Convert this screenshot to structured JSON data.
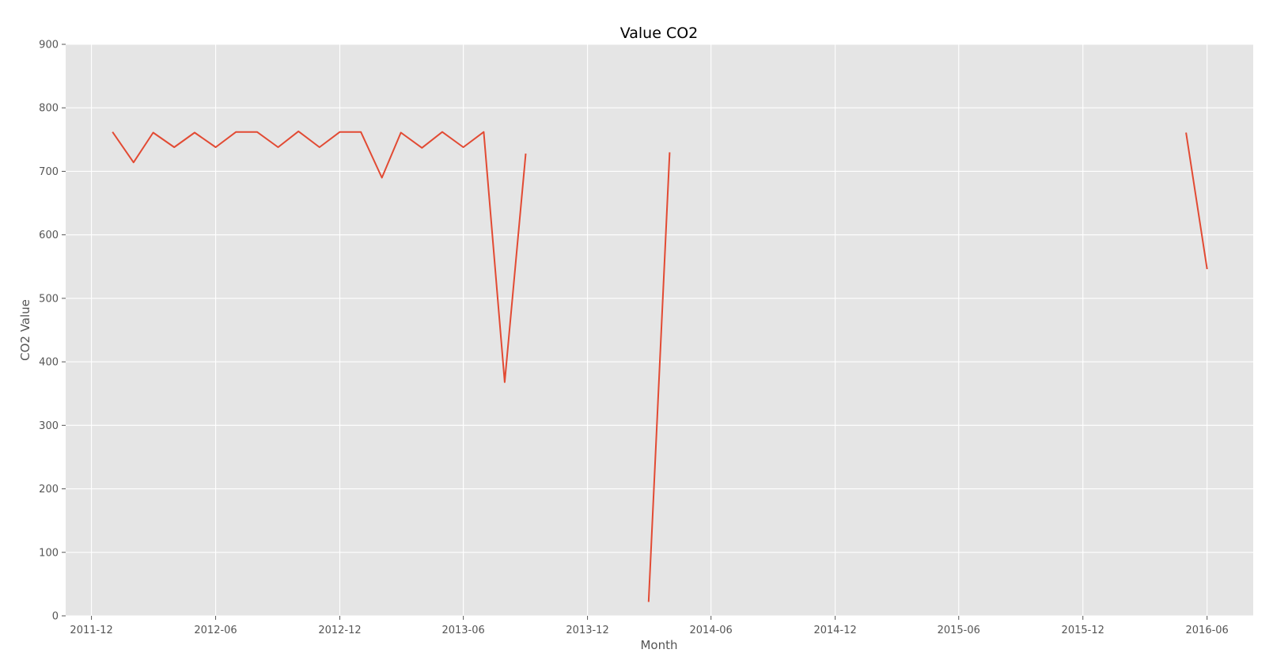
{
  "chart_data": {
    "type": "line",
    "title": "Value CO2",
    "xlabel": "Month",
    "ylabel": "CO2 Value",
    "ylim": [
      0,
      900
    ],
    "xlim": [
      "2011-10-24",
      "2016-08-08"
    ],
    "grid": true,
    "y_ticks": [
      0,
      100,
      200,
      300,
      400,
      500,
      600,
      700,
      800,
      900
    ],
    "x_ticks": [
      "2011-12",
      "2012-06",
      "2012-12",
      "2013-06",
      "2013-12",
      "2014-06",
      "2014-12",
      "2015-06",
      "2015-12",
      "2016-06"
    ],
    "colors": {
      "line": "#e24a33",
      "plot_bg": "#e5e5e5",
      "grid": "#ffffff",
      "axis_text": "#555555"
    },
    "series": [
      {
        "name": "CO2",
        "points": [
          {
            "x": "2012-01",
            "y": 762
          },
          {
            "x": "2012-02",
            "y": 714
          },
          {
            "x": "2012-03",
            "y": 761
          },
          {
            "x": "2012-04",
            "y": 738
          },
          {
            "x": "2012-05",
            "y": 761
          },
          {
            "x": "2012-06",
            "y": 738
          },
          {
            "x": "2012-07",
            "y": 762
          },
          {
            "x": "2012-08",
            "y": 762
          },
          {
            "x": "2012-09",
            "y": 738
          },
          {
            "x": "2012-10",
            "y": 763
          },
          {
            "x": "2012-11",
            "y": 738
          },
          {
            "x": "2012-12",
            "y": 762
          },
          {
            "x": "2013-01",
            "y": 762
          },
          {
            "x": "2013-02",
            "y": 690
          },
          {
            "x": "2013-03",
            "y": 761
          },
          {
            "x": "2013-04",
            "y": 737
          },
          {
            "x": "2013-05",
            "y": 762
          },
          {
            "x": "2013-06",
            "y": 738
          },
          {
            "x": "2013-07",
            "y": 762
          },
          {
            "x": "2013-08",
            "y": 368
          },
          {
            "x": "2013-09",
            "y": 728
          },
          {
            "x": "2013-10",
            "y": null
          },
          {
            "x": "2013-11",
            "y": null
          },
          {
            "x": "2013-12",
            "y": null
          },
          {
            "x": "2014-01",
            "y": null
          },
          {
            "x": "2014-02",
            "y": null
          },
          {
            "x": "2014-03",
            "y": 22
          },
          {
            "x": "2014-04",
            "y": 730
          },
          {
            "x": "2014-05",
            "y": null
          },
          {
            "x": "2016-04",
            "y": null
          },
          {
            "x": "2016-05",
            "y": 761
          },
          {
            "x": "2016-06",
            "y": 546
          }
        ]
      }
    ]
  }
}
